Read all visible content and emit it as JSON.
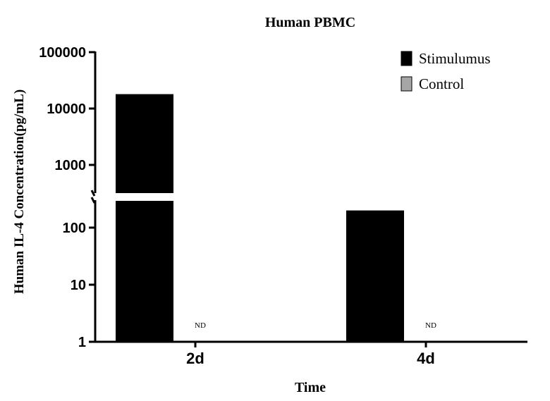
{
  "chart_data": {
    "type": "bar",
    "title": "Human PBMC",
    "xlabel": "Time",
    "ylabel": "Human IL-4 Concentration(pg/mL)",
    "y_scale": "log",
    "y_axis_break": true,
    "ylim": [
      1,
      100000
    ],
    "y_ticks": [
      "1",
      "10",
      "100",
      "1000",
      "10000",
      "100000"
    ],
    "categories": [
      "2d",
      "4d"
    ],
    "series": [
      {
        "name": "Stimulumus",
        "values": [
          18000,
          200
        ],
        "color": "#000000"
      },
      {
        "name": "Control",
        "values": [
          null,
          null
        ],
        "color": "#a6a6a6",
        "annotations": [
          "ND",
          "ND"
        ]
      }
    ],
    "legend_position": "top-right",
    "grid": false
  }
}
